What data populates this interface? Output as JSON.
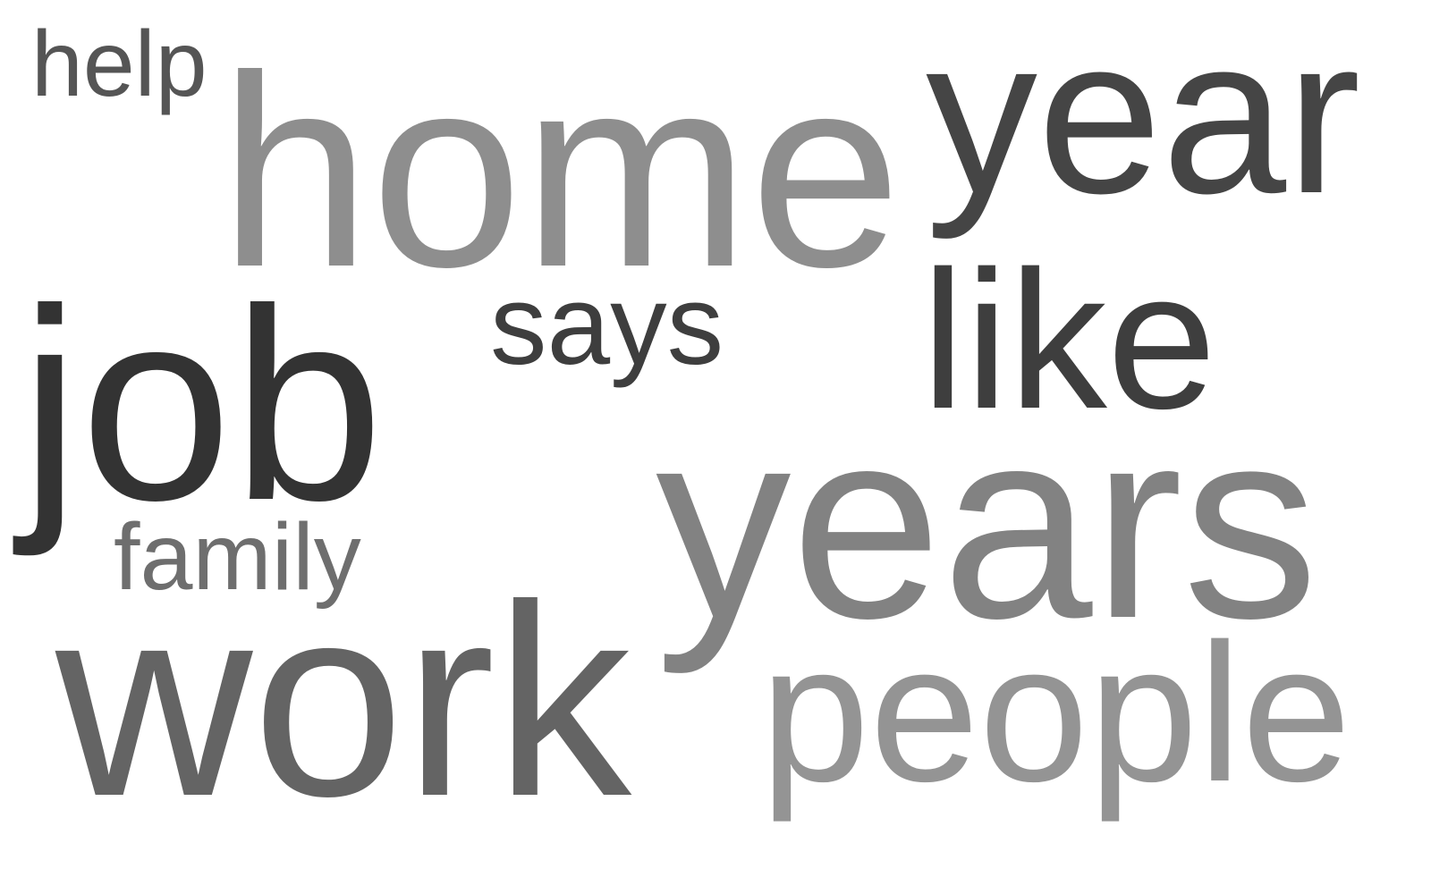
{
  "words": [
    {
      "text": "help",
      "color": "#555555"
    },
    {
      "text": "home",
      "color": "#8e8e8e"
    },
    {
      "text": "year",
      "color": "#454545"
    },
    {
      "text": "says",
      "color": "#3e3e3e"
    },
    {
      "text": "like",
      "color": "#3e3e3e"
    },
    {
      "text": "job",
      "color": "#333333"
    },
    {
      "text": "years",
      "color": "#828282"
    },
    {
      "text": "family",
      "color": "#6e6e6e"
    },
    {
      "text": "work",
      "color": "#646464"
    },
    {
      "text": "people",
      "color": "#949494"
    }
  ]
}
